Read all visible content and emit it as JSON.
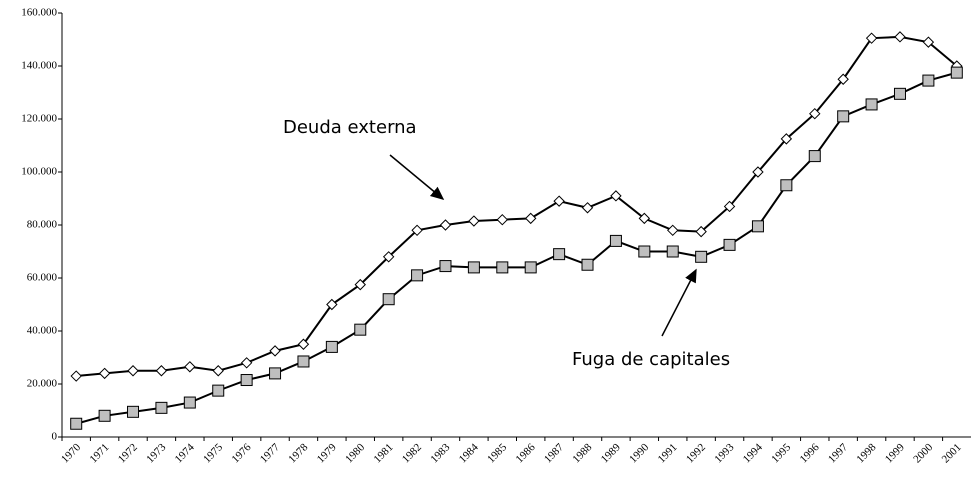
{
  "chart_data": {
    "type": "line",
    "categories": [
      "1970",
      "1971",
      "1972",
      "1973",
      "1974",
      "1975",
      "1976",
      "1977",
      "1978",
      "1979",
      "1980",
      "1981",
      "1982",
      "1983",
      "1984",
      "1985",
      "1986",
      "1987",
      "1988",
      "1989",
      "1990",
      "1991",
      "1992",
      "1993",
      "1994",
      "1995",
      "1996",
      "1997",
      "1998",
      "1999",
      "2000",
      "2001"
    ],
    "series": [
      {
        "name": "Deuda externa",
        "color": "#ffffff",
        "marker": "diamond",
        "values": [
          23000,
          24000,
          25000,
          25000,
          26500,
          25000,
          28000,
          32500,
          35000,
          50000,
          57500,
          68000,
          78000,
          80000,
          81500,
          82000,
          82500,
          89000,
          86500,
          91000,
          82500,
          78000,
          77500,
          87000,
          100000,
          112500,
          122000,
          135000,
          150500,
          151000,
          149000,
          140000
        ]
      },
      {
        "name": "Fuga de capitales",
        "color": "#bfbfbf",
        "marker": "square",
        "values": [
          5000,
          8000,
          9500,
          11000,
          13000,
          17500,
          21500,
          24000,
          28500,
          34000,
          40500,
          52000,
          61000,
          64500,
          64000,
          64000,
          64000,
          69000,
          65000,
          74000,
          70000,
          70000,
          68000,
          72500,
          79500,
          95000,
          106000,
          121000,
          125500,
          129500,
          134500,
          137500
        ]
      }
    ],
    "ylim": [
      0,
      160000
    ],
    "yticks": [
      0,
      {
        "value": 20000,
        "label": "20.000"
      },
      {
        "value": 40000,
        "label": "40.000"
      },
      {
        "value": 60000,
        "label": "60.000"
      },
      {
        "value": 80000,
        "label": "80.000"
      },
      {
        "value": 100000,
        "label": "100.000"
      },
      {
        "value": 120000,
        "label": "120.000"
      },
      {
        "value": 140000,
        "label": "140.000"
      },
      {
        "value": 160000,
        "label": "160.000"
      }
    ]
  }
}
